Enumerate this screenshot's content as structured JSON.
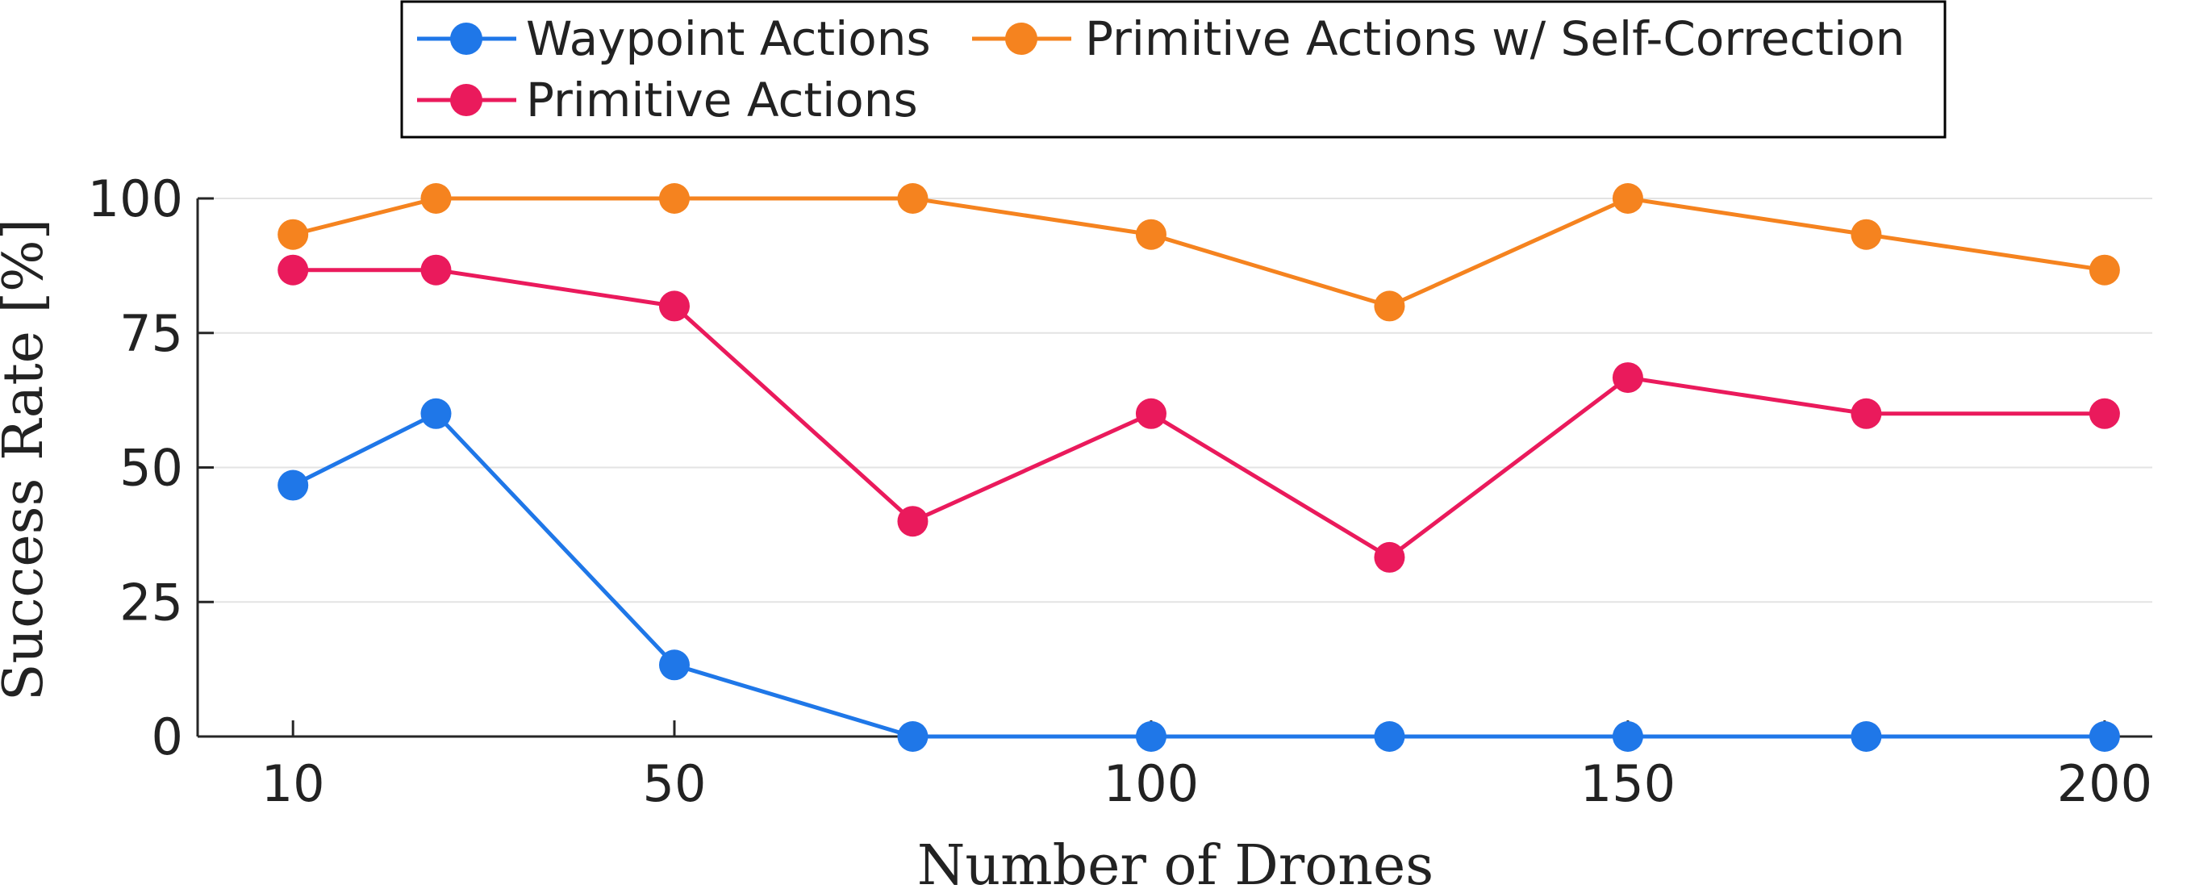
{
  "chart_data": {
    "type": "line",
    "title": "",
    "xlabel": "Number of Drones",
    "ylabel": "Success Rate [%]",
    "xlim": [
      0,
      205
    ],
    "ylim": [
      0,
      100
    ],
    "xticks": [
      10,
      50,
      100,
      150,
      200
    ],
    "yticks": [
      0,
      25,
      50,
      75,
      100
    ],
    "grid": true,
    "legend_position": "top-center",
    "x": [
      10,
      25,
      50,
      75,
      100,
      125,
      150,
      175,
      200
    ],
    "series": [
      {
        "name": "Waypoint Actions",
        "color": "#1f77e8",
        "values": [
          46.7,
          60,
          13.3,
          0,
          0,
          0,
          0,
          0,
          0
        ]
      },
      {
        "name": "Primitive Actions w/ Self-Correction",
        "color": "#f5831f",
        "values": [
          93.3,
          100,
          100,
          100,
          93.3,
          80,
          100,
          93.3,
          86.7
        ]
      },
      {
        "name": "Primitive Actions",
        "color": "#ea1a5c",
        "values": [
          86.7,
          86.7,
          80,
          40,
          60,
          33.3,
          66.7,
          60,
          60
        ]
      }
    ]
  }
}
